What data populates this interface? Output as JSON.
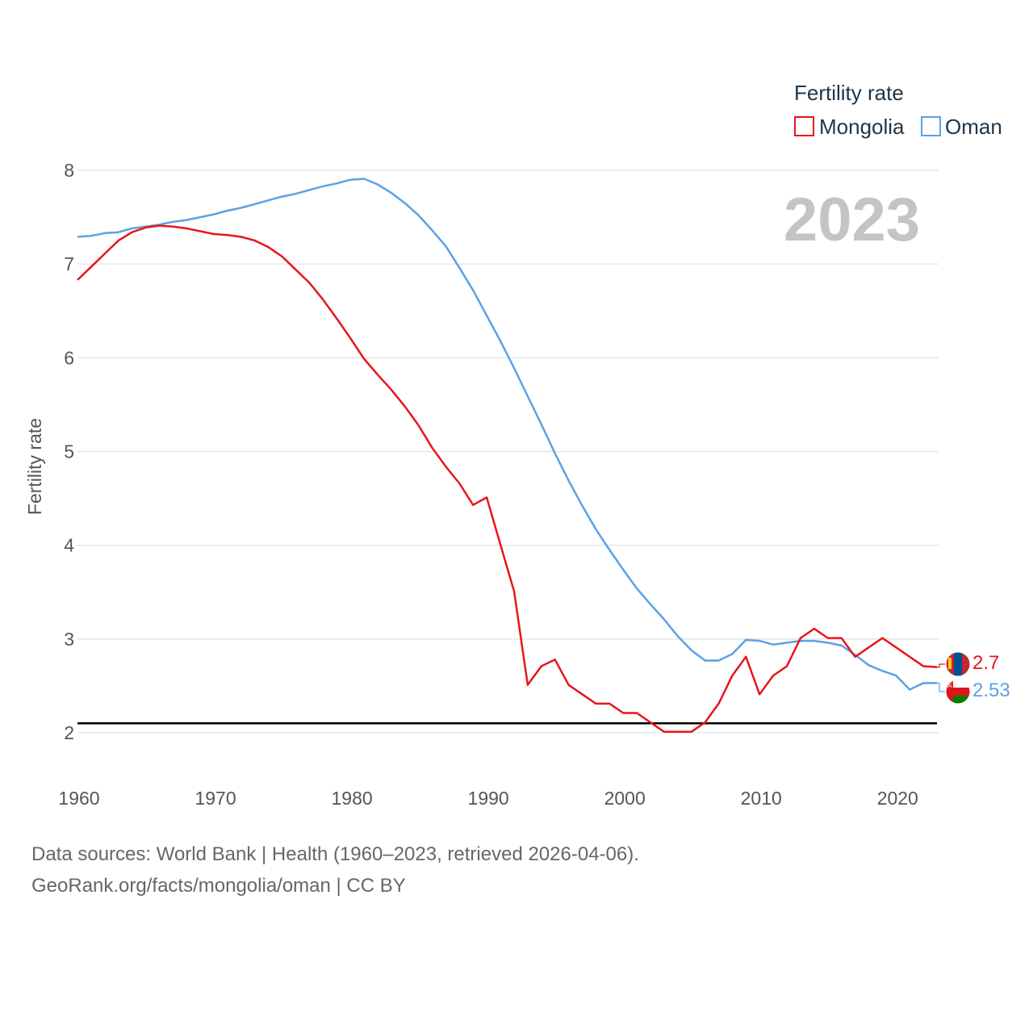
{
  "chart_data": {
    "type": "line",
    "title": "Fertility rate",
    "legend_title": "Fertility rate",
    "legend_position": "top-right",
    "ylabel": "Fertility rate",
    "xlabel": "",
    "xlim": [
      1960,
      2023
    ],
    "ylim": [
      1.5,
      8.25
    ],
    "x_ticks": [
      1960,
      1970,
      1980,
      1990,
      2000,
      2010,
      2020
    ],
    "y_ticks": [
      2,
      3,
      4,
      5,
      6,
      7,
      8
    ],
    "grid": true,
    "reference_line": 2.1,
    "year_display": "2023",
    "x": [
      1960,
      1961,
      1962,
      1963,
      1964,
      1965,
      1966,
      1967,
      1968,
      1969,
      1970,
      1971,
      1972,
      1973,
      1974,
      1975,
      1976,
      1977,
      1978,
      1979,
      1980,
      1981,
      1982,
      1983,
      1984,
      1985,
      1986,
      1987,
      1988,
      1989,
      1990,
      1991,
      1992,
      1993,
      1994,
      1995,
      1996,
      1997,
      1998,
      1999,
      2000,
      2001,
      2002,
      2003,
      2004,
      2005,
      2006,
      2007,
      2008,
      2009,
      2010,
      2011,
      2012,
      2013,
      2014,
      2015,
      2016,
      2017,
      2018,
      2019,
      2020,
      2021,
      2022,
      2023
    ],
    "series": [
      {
        "name": "Mongolia",
        "color": "#e8151b",
        "end_label": "2.7",
        "values": [
          6.83,
          6.97,
          7.11,
          7.25,
          7.34,
          7.39,
          7.41,
          7.4,
          7.38,
          7.35,
          7.32,
          7.31,
          7.29,
          7.25,
          7.18,
          7.08,
          6.94,
          6.8,
          6.62,
          6.42,
          6.21,
          5.99,
          5.82,
          5.66,
          5.48,
          5.28,
          5.04,
          4.84,
          4.66,
          4.43,
          4.51,
          4.01,
          3.51,
          2.51,
          2.71,
          2.78,
          2.51,
          2.41,
          2.31,
          2.31,
          2.21,
          2.21,
          2.11,
          2.01,
          2.01,
          2.01,
          2.11,
          2.31,
          2.61,
          2.81,
          2.41,
          2.61,
          2.71,
          3.01,
          3.11,
          3.01,
          3.01,
          2.81,
          2.91,
          3.01,
          2.91,
          2.81,
          2.71,
          2.7
        ]
      },
      {
        "name": "Oman",
        "color": "#5aa2e6",
        "end_label": "2.53",
        "values": [
          7.29,
          7.3,
          7.33,
          7.34,
          7.38,
          7.4,
          7.42,
          7.45,
          7.47,
          7.5,
          7.53,
          7.57,
          7.6,
          7.64,
          7.68,
          7.72,
          7.75,
          7.79,
          7.83,
          7.86,
          7.9,
          7.91,
          7.85,
          7.76,
          7.65,
          7.52,
          7.36,
          7.19,
          6.96,
          6.72,
          6.45,
          6.18,
          5.89,
          5.59,
          5.29,
          4.98,
          4.69,
          4.42,
          4.17,
          3.95,
          3.74,
          3.54,
          3.37,
          3.21,
          3.03,
          2.88,
          2.77,
          2.77,
          2.84,
          2.99,
          2.98,
          2.94,
          2.96,
          2.98,
          2.98,
          2.96,
          2.93,
          2.83,
          2.72,
          2.66,
          2.61,
          2.46,
          2.53,
          2.53
        ]
      }
    ]
  },
  "footer": {
    "line1": "Data sources: World Bank | Health (1960–2023, retrieved 2026-04-06).",
    "line2": "GeoRank.org/facts/mongolia/oman | CC BY"
  }
}
